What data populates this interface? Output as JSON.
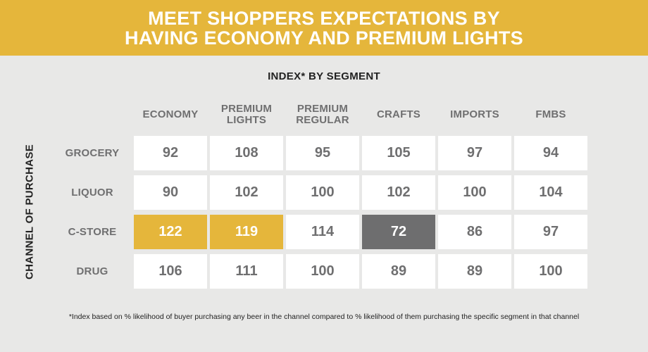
{
  "title": {
    "line1": "MEET SHOPPERS EXPECTATIONS BY",
    "line2": "HAVING ECONOMY AND PREMIUM LIGHTS"
  },
  "colors": {
    "banner": "#e5b63b",
    "highlight_high": "#e5b63b",
    "highlight_low": "#6e6e6f",
    "cell": "#ffffff",
    "text_gray": "#6f6f70"
  },
  "footnote": "*Index based on % likelihood of buyer purchasing any beer in the channel compared to % likelihood of them purchasing the specific segment in that channel",
  "chart_data": {
    "type": "heatmap",
    "title": "INDEX* BY SEGMENT",
    "ylabel": "CHANNEL OF PURCHASE",
    "columns": [
      "ECONOMY",
      "PREMIUM LIGHTS",
      "PREMIUM REGULAR",
      "CRAFTS",
      "IMPORTS",
      "FMBS"
    ],
    "rows": [
      "GROCERY",
      "LIQUOR",
      "C-STORE",
      "DRUG"
    ],
    "values": [
      [
        92,
        108,
        95,
        105,
        97,
        94
      ],
      [
        90,
        102,
        100,
        102,
        100,
        104
      ],
      [
        122,
        119,
        114,
        72,
        86,
        97
      ],
      [
        106,
        111,
        100,
        89,
        89,
        100
      ]
    ],
    "highlights": [
      {
        "row": 2,
        "col": 0,
        "level": "high"
      },
      {
        "row": 2,
        "col": 1,
        "level": "high"
      },
      {
        "row": 2,
        "col": 3,
        "level": "low"
      }
    ]
  }
}
